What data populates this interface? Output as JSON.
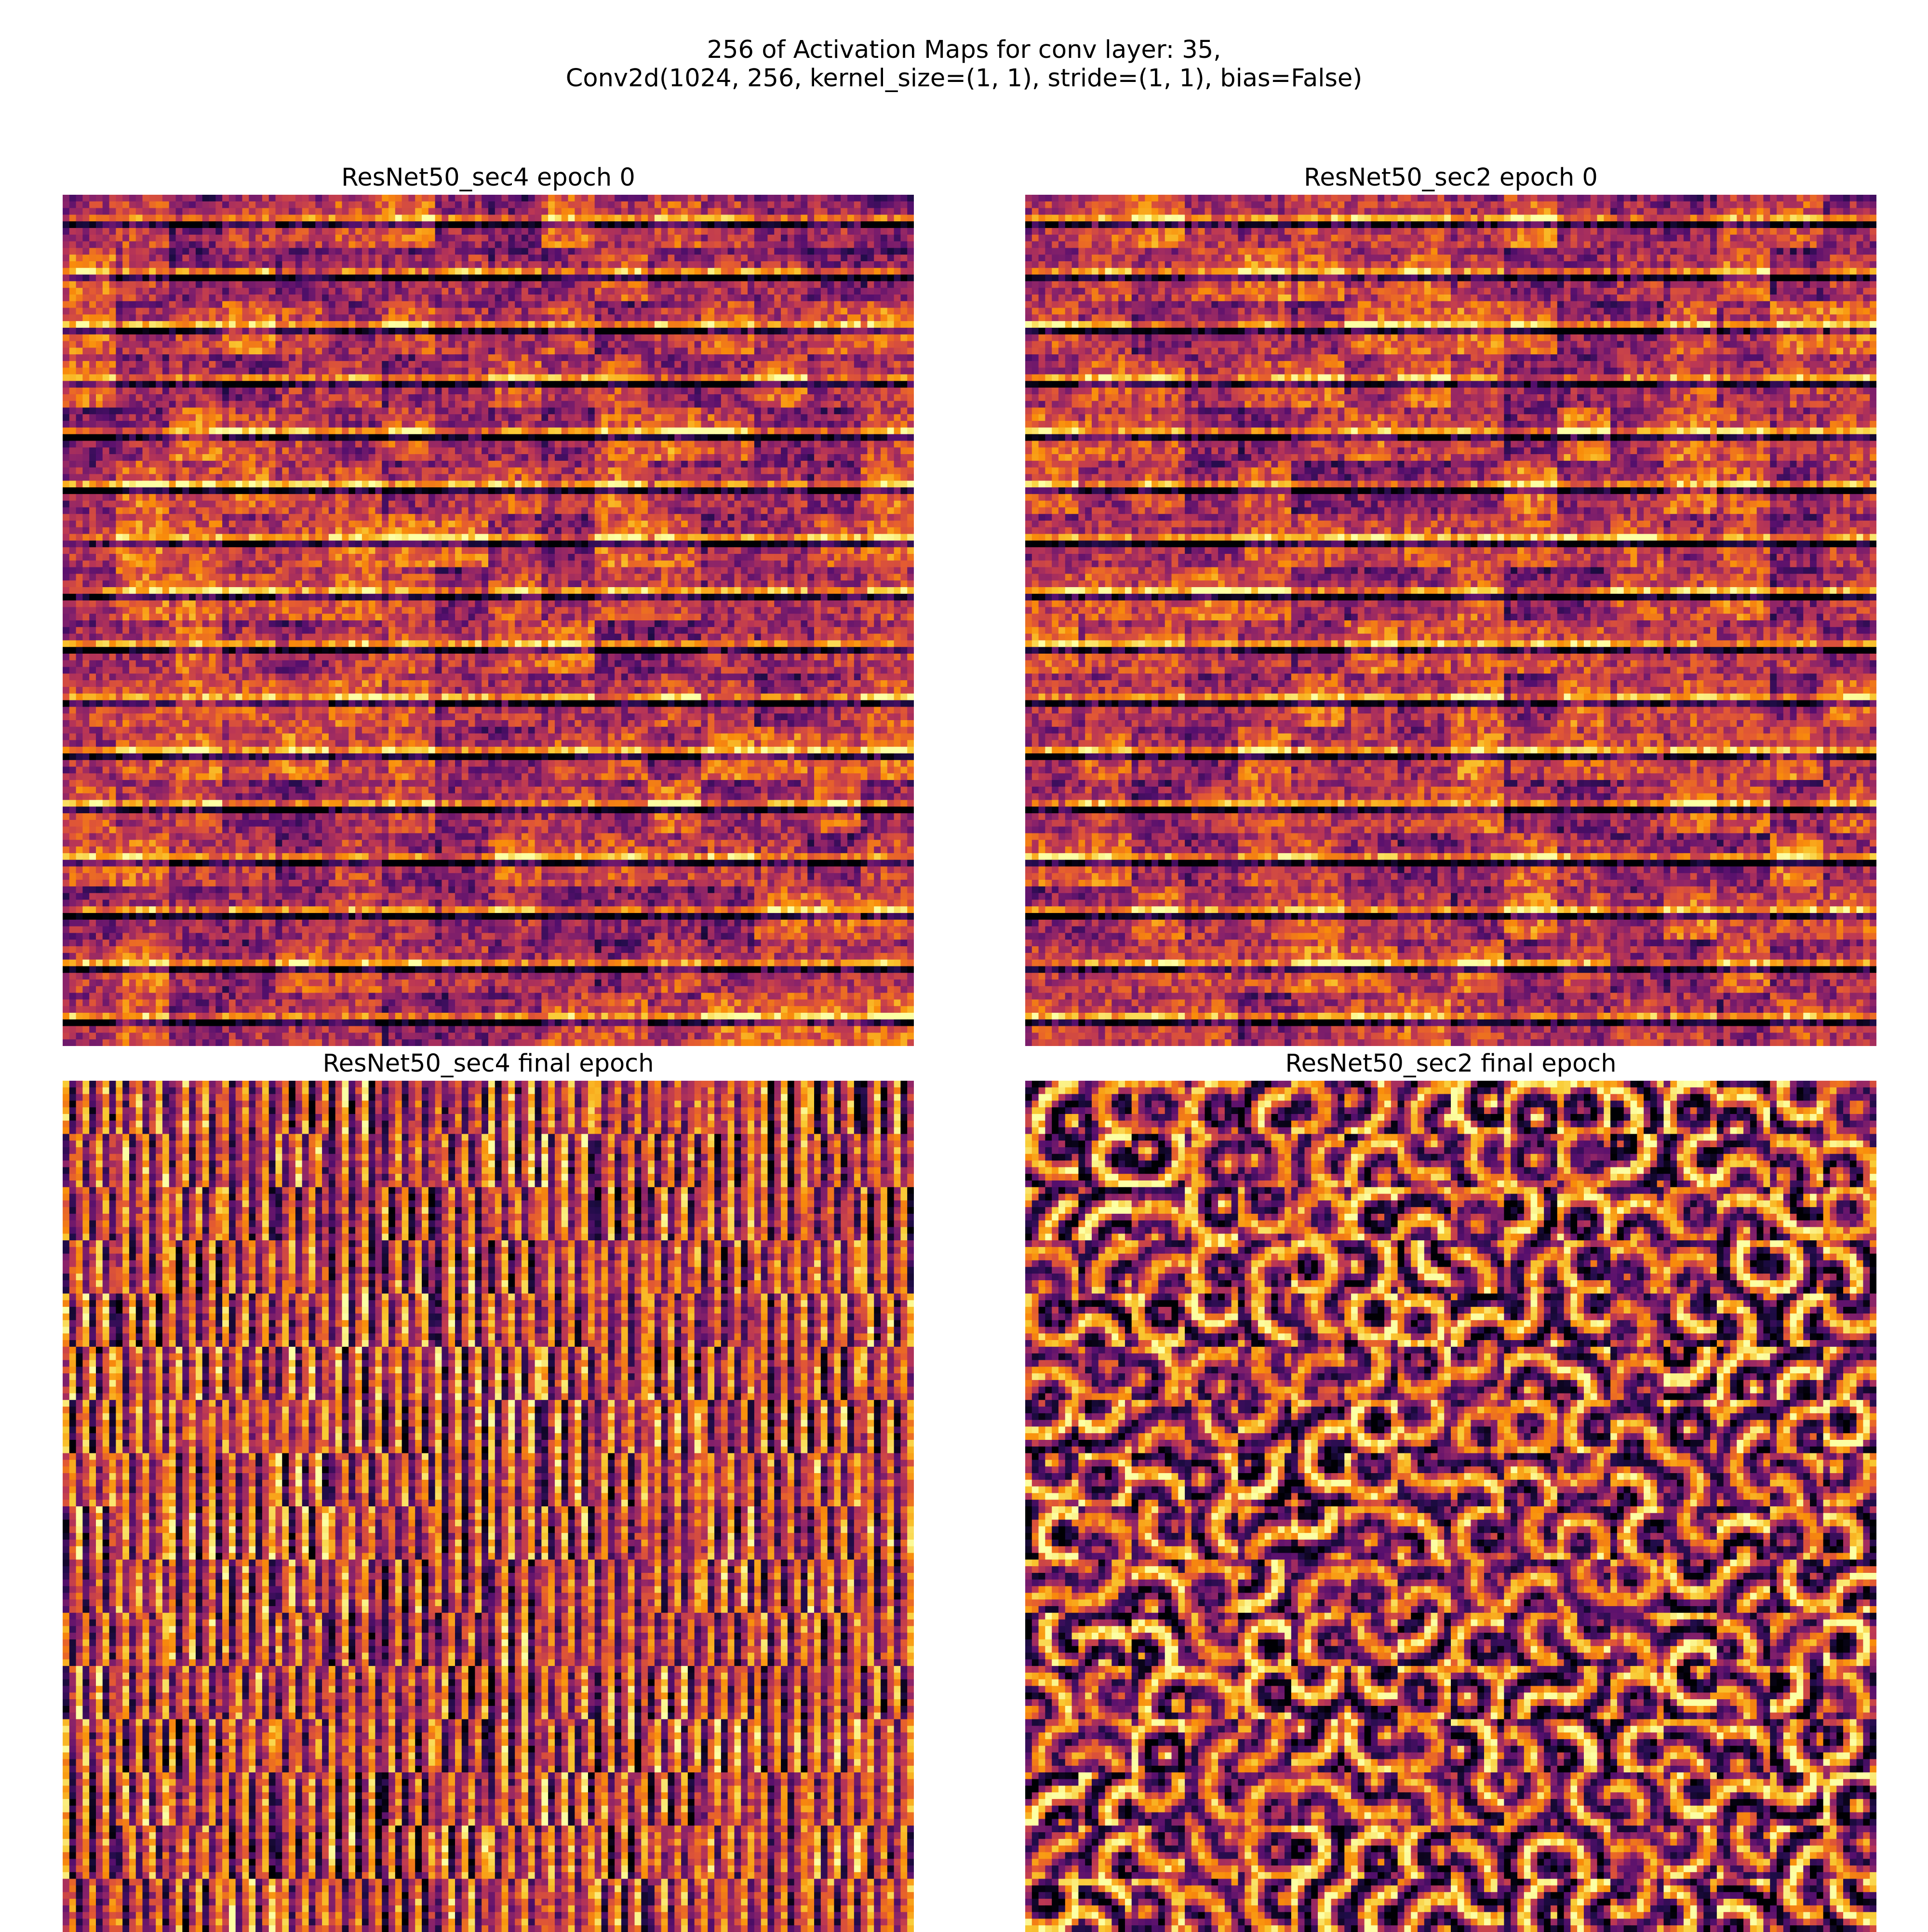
{
  "suptitle": {
    "line1": "256 of Activation Maps for conv layer: 35,",
    "line2": "Conv2d(1024, 256, kernel_size=(1, 1), stride=(1, 1), bias=False)"
  },
  "chart_data": [
    {
      "type": "heatmap",
      "title": "ResNet50_sec4 epoch 0",
      "grid": "16x16",
      "tiles": 256,
      "colormap": "inferno",
      "axes": "off",
      "pattern": "horizontal"
    },
    {
      "type": "heatmap",
      "title": "ResNet50_sec2 epoch 0",
      "grid": "16x16",
      "tiles": 256,
      "colormap": "inferno",
      "axes": "off",
      "pattern": "horizontal"
    },
    {
      "type": "heatmap",
      "title": "ResNet50_sec4 final epoch",
      "grid": "16x16",
      "tiles": 256,
      "colormap": "inferno",
      "axes": "off",
      "pattern": "vertical-stripes"
    },
    {
      "type": "heatmap",
      "title": "ResNet50_sec2 final epoch",
      "grid": "16x16",
      "tiles": 256,
      "colormap": "inferno",
      "axes": "off",
      "pattern": "blobs"
    }
  ]
}
